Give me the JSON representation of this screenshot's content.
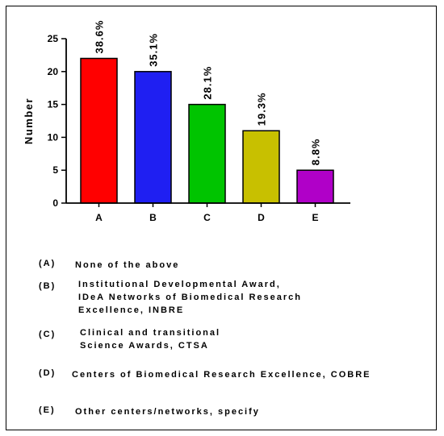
{
  "chart_data": {
    "type": "bar",
    "ylabel": "Number",
    "xlabel": "",
    "ylim": [
      0,
      25
    ],
    "yticks": [
      0,
      5,
      10,
      15,
      20,
      25
    ],
    "categories": [
      "A",
      "B",
      "C",
      "D",
      "E"
    ],
    "values": [
      22,
      20,
      15,
      11,
      5
    ],
    "data_labels": [
      "38.6%",
      "35.1%",
      "28.1%",
      "19.3%",
      "8.8%"
    ],
    "colors": [
      "#ff0000",
      "#1f1ff2",
      "#00c400",
      "#c8c000",
      "#b000c8"
    ],
    "grid": false
  },
  "legend": [
    {
      "key": "(A)",
      "lines": [
        "None of the above"
      ]
    },
    {
      "key": "(B)",
      "lines": [
        "Institutional Developmental Award,",
        "IDeA Networks of Biomedical Research",
        "Excellence, INBRE"
      ]
    },
    {
      "key": "(C)",
      "lines": [
        "Clinical and transitional",
        "Science Awards, CTSA"
      ]
    },
    {
      "key": "(D)",
      "lines": [
        "Centers of Biomedical Research Excellence, COBRE"
      ]
    },
    {
      "key": "(E)",
      "lines": [
        "Other centers/networks, specify"
      ]
    }
  ]
}
